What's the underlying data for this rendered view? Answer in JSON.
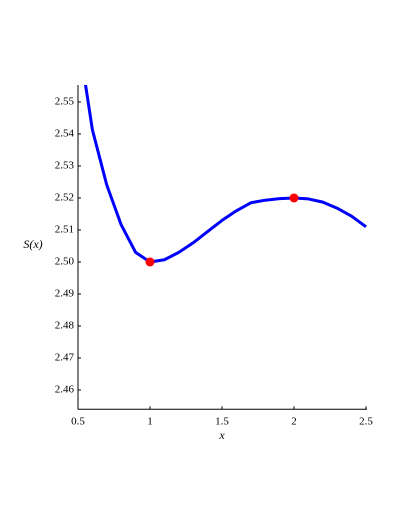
{
  "chart_data": {
    "type": "line",
    "x_label": "x",
    "y_label": "S(x)",
    "xlim": [
      0.5,
      2.5
    ],
    "xticks": [
      0.5,
      1,
      1.5,
      2,
      2.5
    ],
    "ylim": [
      2.454,
      2.5553
    ],
    "yticks": [
      2.46,
      2.47,
      2.48,
      2.49,
      {
        "value": 2.5,
        "label": "2.50"
      },
      2.51,
      2.52,
      2.53,
      2.54,
      2.55
    ],
    "series": [
      {
        "color": "#0000ff",
        "marker": "none",
        "x": [
          0.55,
          0.6,
          0.7,
          0.8,
          0.9,
          1.0,
          1.1,
          1.2,
          1.3,
          1.4,
          1.5,
          1.6,
          1.7,
          1.8,
          1.9,
          2.0,
          2.1,
          2.2,
          2.3,
          2.4,
          2.5
        ],
        "values": [
          2.556,
          2.5413,
          2.524,
          2.5116,
          2.503,
          2.5,
          2.5007,
          2.503,
          2.506,
          2.5095,
          2.513,
          2.516,
          2.5185,
          2.5193,
          2.5198,
          2.52,
          2.5197,
          2.5187,
          2.5168,
          2.5143,
          2.511
        ]
      },
      {
        "color": "#ff0000",
        "marker": "dot",
        "x": [
          1,
          2
        ],
        "values": [
          2.5,
          2.52
        ]
      }
    ]
  }
}
